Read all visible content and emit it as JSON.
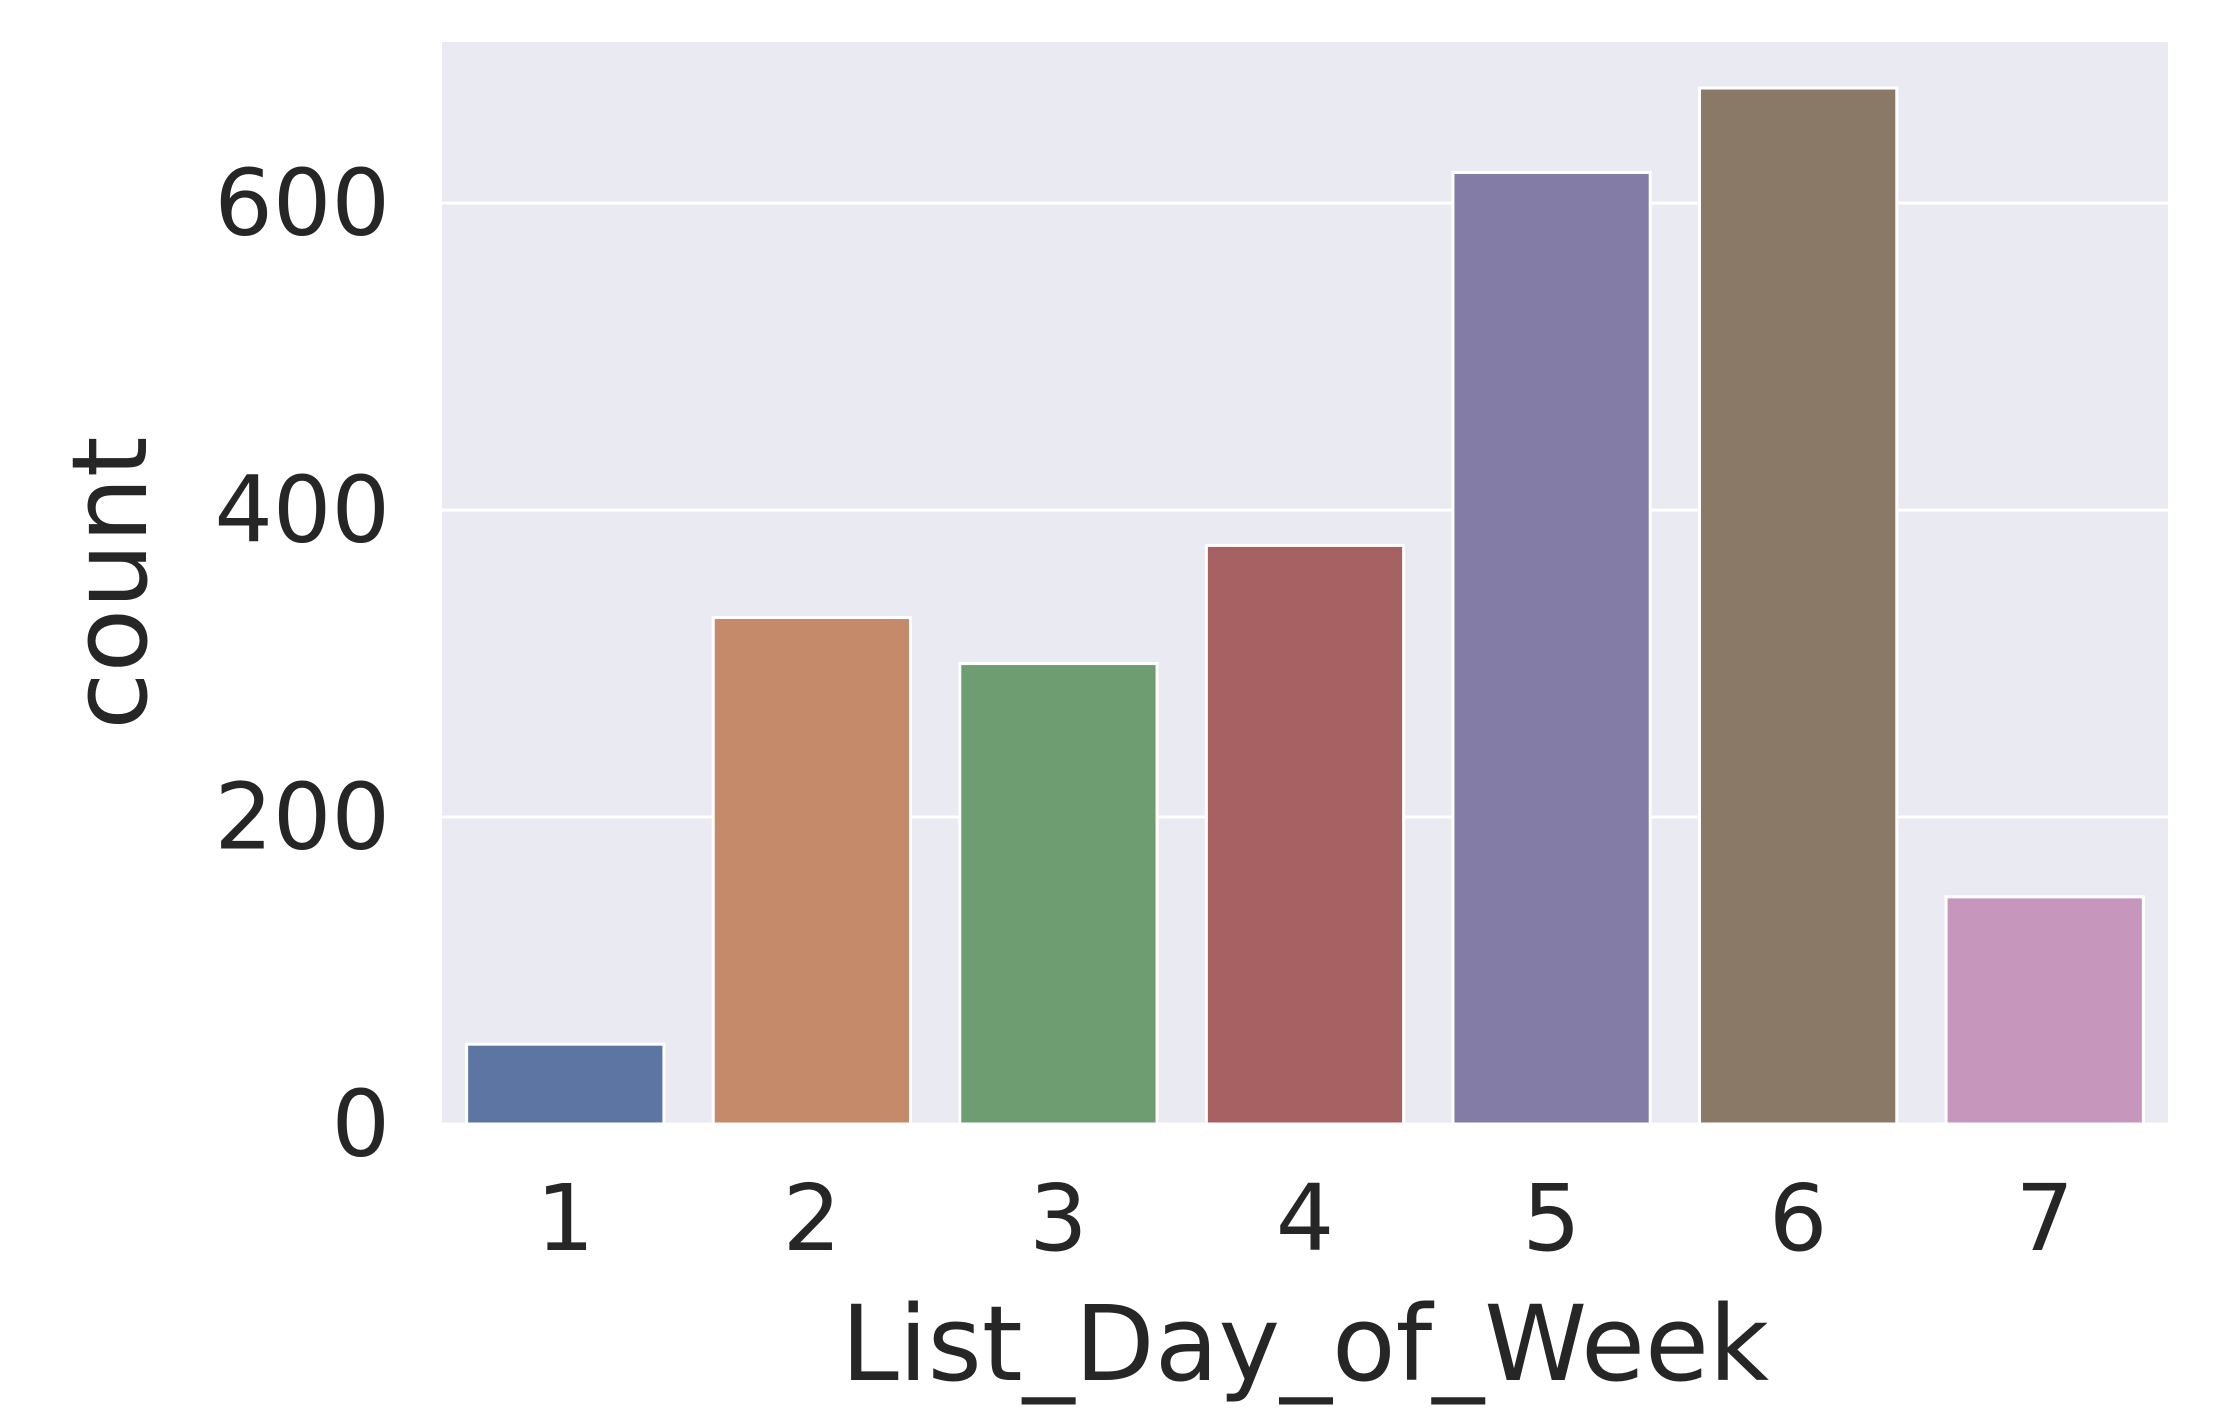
{
  "chart_data": {
    "type": "bar",
    "title": "",
    "xlabel": "List_Day_of_Week",
    "ylabel": "count",
    "categories": [
      "1",
      "2",
      "3",
      "4",
      "5",
      "6",
      "7"
    ],
    "values": [
      52,
      330,
      300,
      377,
      620,
      675,
      148
    ],
    "ylim": [
      0,
      705
    ],
    "yticks": [
      0,
      200,
      400,
      600
    ],
    "grid": true,
    "legend": "none",
    "style": {
      "background": "#ffffff",
      "plot_background": "#eaeaf2",
      "grid_color": "#ffffff",
      "text_color": "#262626",
      "bar_edge_color": "#ffffff",
      "bar_colors": [
        "#5d75a2",
        "#c48a69",
        "#6e9d72",
        "#a86162",
        "#837ca7",
        "#8b7968",
        "#c696bd"
      ]
    }
  }
}
